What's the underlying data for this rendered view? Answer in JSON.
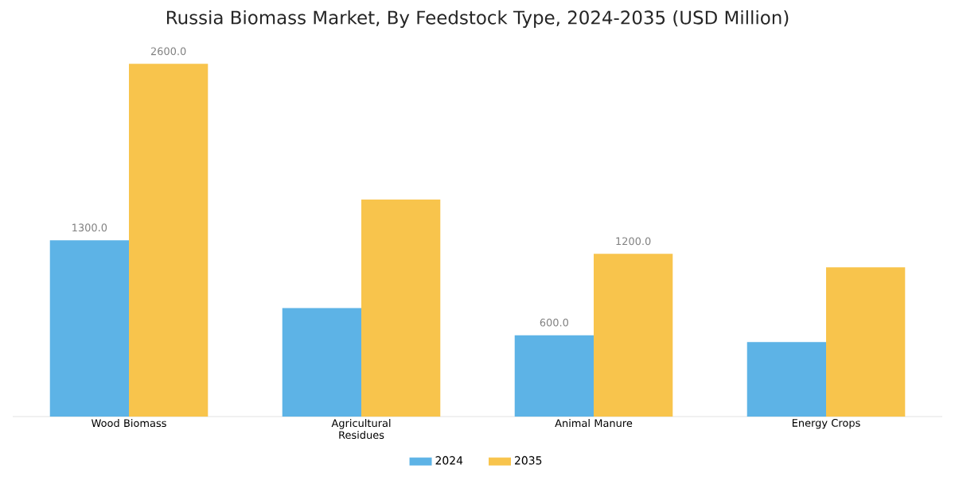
{
  "chart_data": {
    "type": "bar",
    "title": "Russia Biomass Market, By Feedstock Type, 2024-2035 (USD Million)",
    "categories": [
      "Wood Biomass",
      "Agricultural Residues",
      "Animal Manure",
      "Energy Crops"
    ],
    "series": [
      {
        "name": "2024",
        "color": "#5db3e6",
        "values": [
          1300,
          800,
          600,
          550
        ],
        "value_labels": [
          "1300.0",
          null,
          "600.0",
          null
        ]
      },
      {
        "name": "2035",
        "color": "#f8c44c",
        "values": [
          2600,
          1600,
          1200,
          1100
        ],
        "value_labels": [
          "2600.0",
          null,
          "1200.0",
          null
        ]
      }
    ],
    "legend": "bottom"
  }
}
